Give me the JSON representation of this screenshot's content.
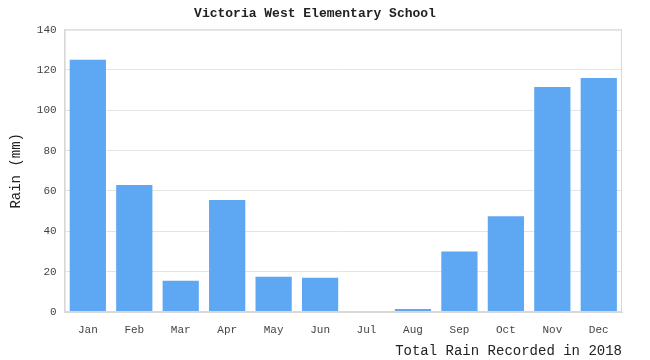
{
  "chart_data": {
    "type": "bar",
    "title": "Victoria West Elementary School",
    "ylabel": "Rain (mm)",
    "xlabel": "Total Rain Recorded in 2018",
    "categories": [
      "Jan",
      "Feb",
      "Mar",
      "Apr",
      "May",
      "Jun",
      "Jul",
      "Aug",
      "Sep",
      "Oct",
      "Nov",
      "Dec"
    ],
    "values": [
      125,
      63,
      15.5,
      55.5,
      17.5,
      17,
      0,
      1.5,
      30,
      47.5,
      111.5,
      116
    ],
    "color": "#5ea7f3",
    "ylim": [
      0,
      140
    ],
    "yticks": [
      0,
      20,
      40,
      60,
      80,
      100,
      120,
      140
    ],
    "grid": true
  }
}
